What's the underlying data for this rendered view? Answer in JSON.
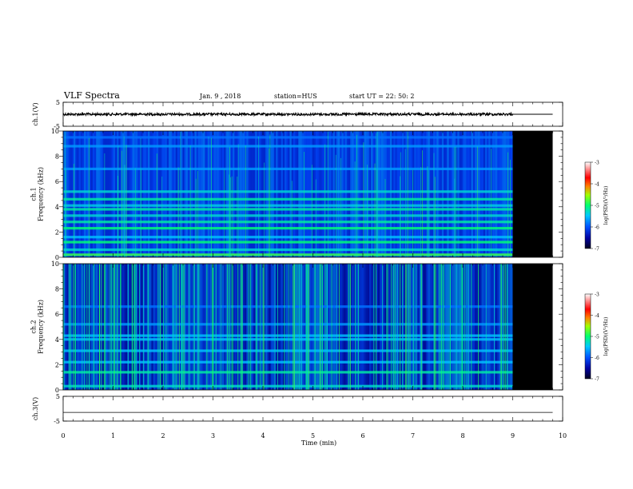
{
  "header": {
    "title": "VLF Spectra",
    "date": "Jan. 9 , 2018",
    "station": "station=HUS",
    "start": "start UT =  22: 50: 2"
  },
  "chart_data": [
    {
      "type": "line",
      "panel": "ch1-waveform",
      "ylabel": "ch.1(V)",
      "ylim": [
        -5,
        5
      ],
      "yticks": [
        "5",
        "-5"
      ],
      "x_range_min": [
        0,
        9.8
      ],
      "series_note": "waveform trace near 0 V",
      "values": [
        0.0,
        0.0
      ]
    },
    {
      "type": "heatmap",
      "panel": "ch1-spectrogram",
      "ylabel": "ch.1\nFrequency (kHz)",
      "ylim": [
        0,
        10
      ],
      "yticks": [
        "0",
        "2",
        "4",
        "6",
        "8",
        "10"
      ],
      "data_extent_min": [
        0,
        9.0
      ],
      "no_data_region_min": [
        9.0,
        9.8
      ],
      "colorbar": {
        "label": "log(PSD)(V²/Hz)",
        "ticks": [
          "-3",
          "-4",
          "-5",
          "-6",
          "-7"
        ],
        "range": [
          -7,
          -3
        ]
      }
    },
    {
      "type": "heatmap",
      "panel": "ch2-spectrogram",
      "ylabel": "ch.2\nFrequency (kHz)",
      "ylim": [
        0,
        10
      ],
      "yticks": [
        "0",
        "2",
        "4",
        "6",
        "8",
        "10"
      ],
      "data_extent_min": [
        0,
        9.0
      ],
      "no_data_region_min": [
        9.0,
        9.8
      ],
      "colorbar": {
        "label": "log(PSD)(V²/Hz)",
        "ticks": [
          "-3",
          "-4",
          "-5",
          "-6",
          "-7"
        ],
        "range": [
          -7,
          -3
        ]
      }
    },
    {
      "type": "line",
      "panel": "ch3-waveform",
      "ylabel": "ch.3(V)",
      "ylim": [
        -5,
        5
      ],
      "yticks": [
        "5",
        "-5"
      ],
      "x_range_min": [
        0,
        9.8
      ],
      "series_note": "flat trace",
      "values": [
        -1.5,
        -1.5
      ]
    }
  ],
  "xaxis": {
    "label": "Time (min)",
    "ticks": [
      "0",
      "1",
      "2",
      "3",
      "4",
      "5",
      "6",
      "7",
      "8",
      "9",
      "10"
    ],
    "xlim": [
      0,
      10
    ]
  },
  "colors": {
    "background": "#ffffff",
    "nodata": "#000000",
    "colormap": [
      "#000014",
      "#000080",
      "#0040ff",
      "#00c0ff",
      "#00ff80",
      "#c0ff00",
      "#ff4000",
      "#ff0000",
      "#ffffff"
    ]
  }
}
